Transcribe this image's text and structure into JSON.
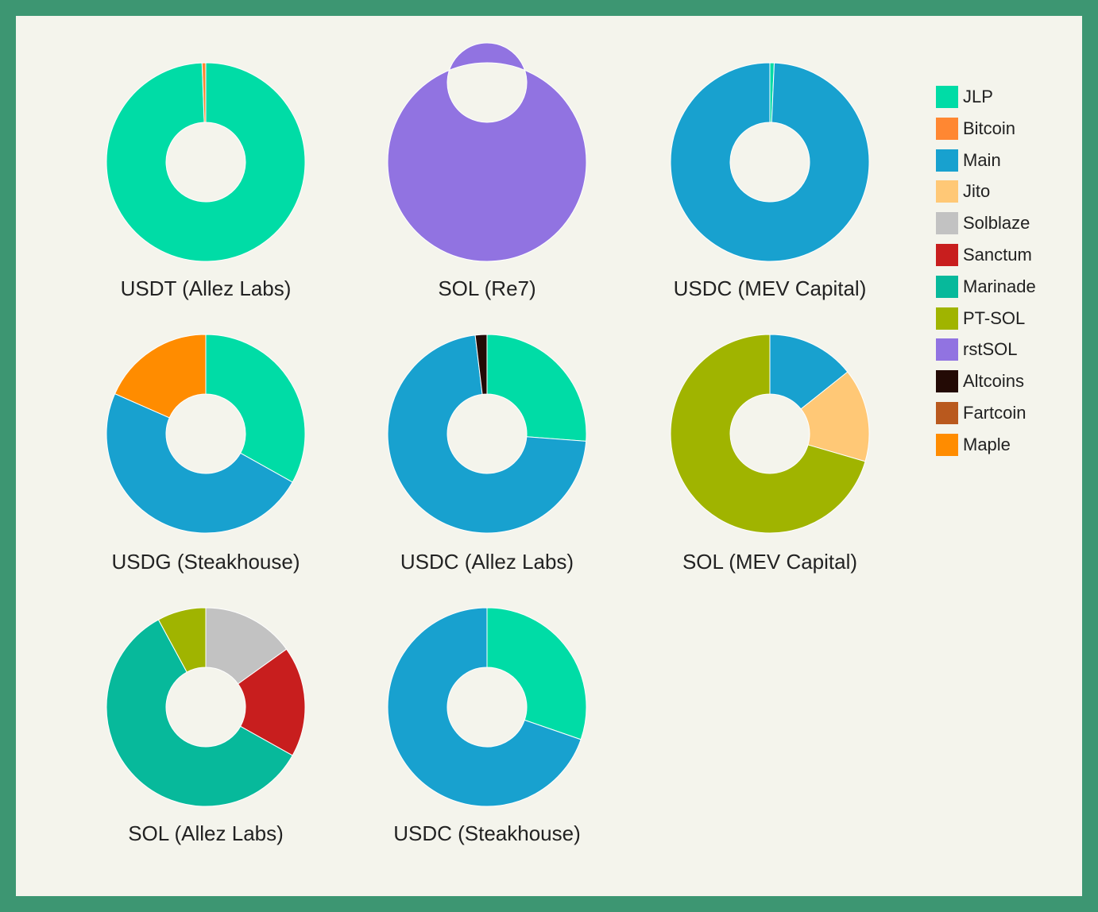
{
  "colors": {
    "frame": "#3d9672",
    "panel": "#f4f4ec",
    "slice_stroke": "#ffffff"
  },
  "legend": [
    {
      "name": "JLP",
      "color": "#00dca6"
    },
    {
      "name": "Bitcoin",
      "color": "#ff8732"
    },
    {
      "name": "Main",
      "color": "#18a1cf"
    },
    {
      "name": "Jito",
      "color": "#ffc876"
    },
    {
      "name": "Solblaze",
      "color": "#c2c2c2"
    },
    {
      "name": "Sanctum",
      "color": "#c81e1e"
    },
    {
      "name": "Marinade",
      "color": "#07b99b"
    },
    {
      "name": "PT-SOL",
      "color": "#a0b400"
    },
    {
      "name": "rstSOL",
      "color": "#9173e1"
    },
    {
      "name": "Altcoins",
      "color": "#230a05"
    },
    {
      "name": "Fartcoin",
      "color": "#b9591e"
    },
    {
      "name": "Maple",
      "color": "#ff8c00"
    }
  ],
  "chart_data": [
    {
      "type": "pie",
      "title": "USDT (Allez Labs)",
      "slices": [
        {
          "label": "JLP",
          "value": 99.4
        },
        {
          "label": "Bitcoin",
          "value": 0.6
        }
      ]
    },
    {
      "type": "pie",
      "title": "SOL (Re7)",
      "slices": [
        {
          "label": "rstSOL",
          "value": 100
        }
      ]
    },
    {
      "type": "pie",
      "title": "USDC (MEV Capital)",
      "slices": [
        {
          "label": "JLP",
          "value": 0.7
        },
        {
          "label": "Main",
          "value": 99.3
        }
      ]
    },
    {
      "type": "pie",
      "title": "USDG (Steakhouse)",
      "slices": [
        {
          "label": "JLP",
          "value": 33.1
        },
        {
          "label": "Main",
          "value": 48.5
        },
        {
          "label": "Maple",
          "value": 18.4
        }
      ]
    },
    {
      "type": "pie",
      "title": "USDC (Allez Labs)",
      "slices": [
        {
          "label": "JLP",
          "value": 26.2
        },
        {
          "label": "Main",
          "value": 71.9
        },
        {
          "label": "Altcoins",
          "value": 1.9
        }
      ]
    },
    {
      "type": "pie",
      "title": "SOL (MEV Capital)",
      "slices": [
        {
          "label": "Main",
          "value": 14.3
        },
        {
          "label": "Jito",
          "value": 15.2
        },
        {
          "label": "PT-SOL",
          "value": 70.5
        }
      ]
    },
    {
      "type": "pie",
      "title": "SOL (Allez Labs)",
      "slices": [
        {
          "label": "Solblaze",
          "value": 15.1
        },
        {
          "label": "Sanctum",
          "value": 18.0
        },
        {
          "label": "Marinade",
          "value": 59.0
        },
        {
          "label": "PT-SOL",
          "value": 7.9
        }
      ]
    },
    {
      "type": "pie",
      "title": "USDC (Steakhouse)",
      "slices": [
        {
          "label": "JLP",
          "value": 30.3
        },
        {
          "label": "Main",
          "value": 69.7
        }
      ]
    }
  ]
}
